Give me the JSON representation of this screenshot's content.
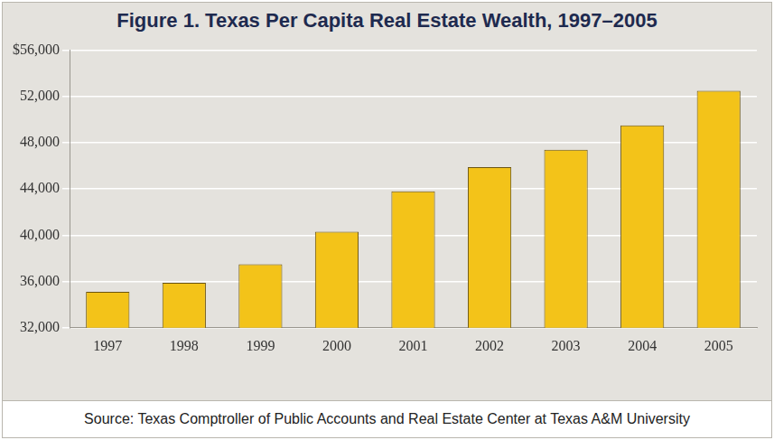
{
  "chart_data": {
    "type": "bar",
    "title": "Figure 1. Texas Per Capita Real Estate Wealth, 1997–2005",
    "source": "Source: Texas Comptroller of Public Accounts and Real Estate Center at Texas A&M University",
    "categories": [
      "1997",
      "1998",
      "1999",
      "2000",
      "2001",
      "2002",
      "2003",
      "2004",
      "2005"
    ],
    "values": [
      35100,
      35900,
      37500,
      40300,
      43800,
      45900,
      47400,
      49500,
      52500
    ],
    "color": "#f3c319",
    "ylim": [
      32000,
      56000
    ],
    "yticks": [
      {
        "value": 32000,
        "label": "32,000"
      },
      {
        "value": 36000,
        "label": "36,000"
      },
      {
        "value": 40000,
        "label": "40,000"
      },
      {
        "value": 44000,
        "label": "44,000"
      },
      {
        "value": 48000,
        "label": "48,000"
      },
      {
        "value": 52000,
        "label": "52,000"
      },
      {
        "value": 56000,
        "label": "$56,000"
      }
    ],
    "grid": true
  }
}
